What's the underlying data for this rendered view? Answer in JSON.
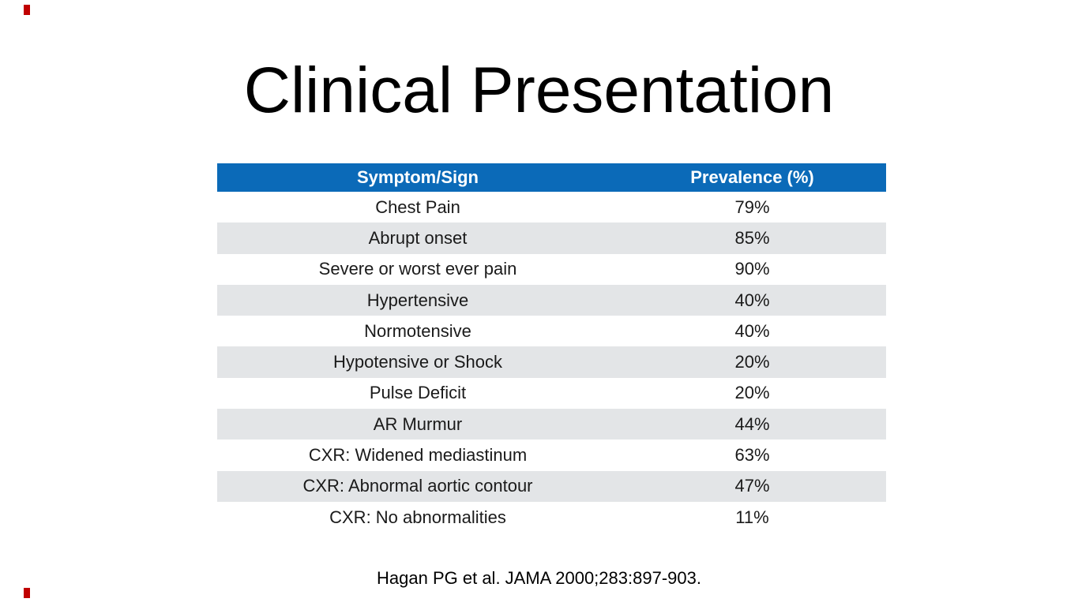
{
  "slide": {
    "title": "Clinical Presentation",
    "citation": "Hagan PG et al. JAMA 2000;283:897-903.",
    "decor": {
      "mark_color": "#c00000"
    }
  },
  "table": {
    "columns": [
      "Symptom/Sign",
      "Prevalence (%)"
    ],
    "rows": [
      {
        "symptom": "Chest Pain",
        "prevalence": "79%"
      },
      {
        "symptom": "Abrupt onset",
        "prevalence": "85%"
      },
      {
        "symptom": "Severe or worst ever pain",
        "prevalence": "90%"
      },
      {
        "symptom": "Hypertensive",
        "prevalence": "40%"
      },
      {
        "symptom": "Normotensive",
        "prevalence": "40%"
      },
      {
        "symptom": "Hypotensive or Shock",
        "prevalence": "20%"
      },
      {
        "symptom": "Pulse Deficit",
        "prevalence": "20%"
      },
      {
        "symptom": "AR Murmur",
        "prevalence": "44%"
      },
      {
        "symptom": "CXR: Widened mediastinum",
        "prevalence": "63%"
      },
      {
        "symptom": "CXR: Abnormal aortic contour",
        "prevalence": "47%"
      },
      {
        "symptom": "CXR: No abnormalities",
        "prevalence": "11%"
      }
    ],
    "style": {
      "header_bg": "#0b6ab8",
      "header_text": "#ffffff",
      "row_bg": "#ffffff",
      "row_alt_bg": "#e3e5e7",
      "text_color": "#1a1a1a"
    }
  }
}
